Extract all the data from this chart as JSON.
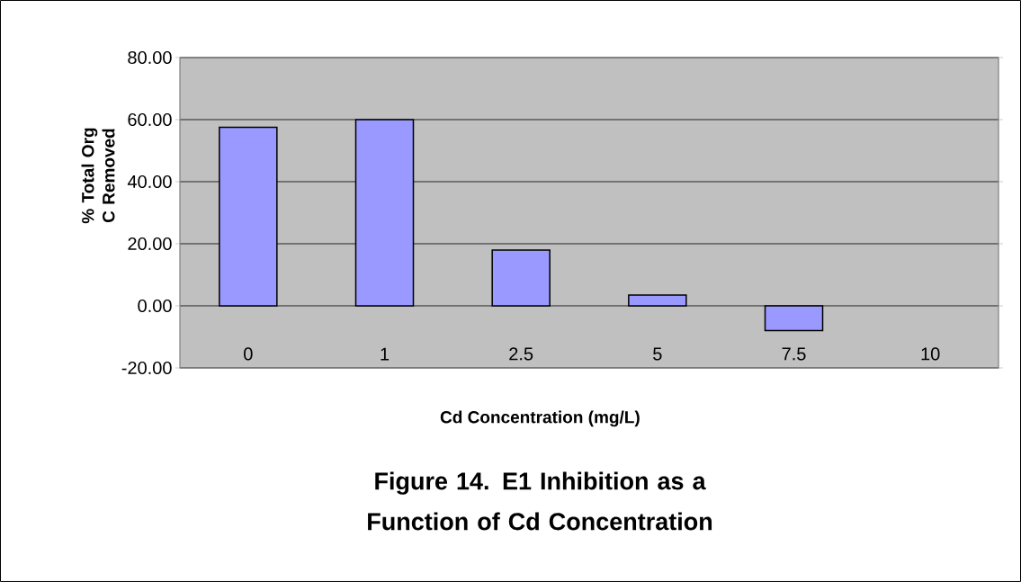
{
  "chart_data": {
    "type": "bar",
    "title": "Figure 14.  E1 Inhibition as a Function of Cd Concentration",
    "xlabel": "Cd Concentration (mg/L)",
    "ylabel": "% Total Org C Removed",
    "categories": [
      "0",
      "1",
      "2.5",
      "5",
      "7.5",
      "10"
    ],
    "values": [
      57.5,
      60,
      18,
      3.5,
      -8,
      null
    ],
    "color": "#9999ff",
    "ylim": [
      -20,
      80
    ],
    "yticks": [
      {
        "value": -20,
        "label": "-20.00"
      },
      {
        "value": 0,
        "label": "0.00"
      },
      {
        "value": 20,
        "label": "20.00"
      },
      {
        "value": 40,
        "label": "40.00"
      },
      {
        "value": 60,
        "label": "60.00"
      },
      {
        "value": 80,
        "label": "80.00"
      }
    ],
    "grid": "y"
  }
}
